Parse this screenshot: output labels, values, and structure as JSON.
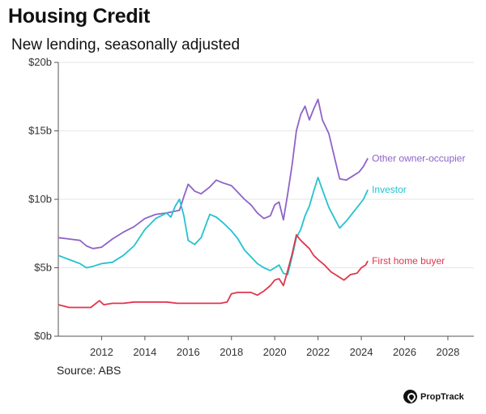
{
  "title": "Housing Credit",
  "subtitle": "New lending, seasonally adjusted",
  "source": "Source: ABS",
  "brand": {
    "name": "PropTrack",
    "icon": "proptrack-logo-icon"
  },
  "chart_data": {
    "type": "line",
    "title": "Housing Credit",
    "subtitle": "New lending, seasonally adjusted",
    "xlabel": "",
    "ylabel": "",
    "xlim": [
      2010,
      2029.2
    ],
    "ylim": [
      0,
      20
    ],
    "x_ticks": [
      2012,
      2014,
      2016,
      2018,
      2020,
      2022,
      2024,
      2026,
      2028
    ],
    "y_ticks": [
      {
        "value": 0,
        "label": "$0b"
      },
      {
        "value": 5,
        "label": "$5b"
      },
      {
        "value": 10,
        "label": "$10b"
      },
      {
        "value": 15,
        "label": "$15b"
      },
      {
        "value": 20,
        "label": "$20b"
      }
    ],
    "grid": "horizontal",
    "legend": "direct labels at line ends",
    "series": [
      {
        "name": "Other owner-occupier",
        "color": "#8e63c7",
        "x": [
          2010.0,
          2010.5,
          2011.0,
          2011.3,
          2011.6,
          2012.0,
          2012.5,
          2013.0,
          2013.5,
          2014.0,
          2014.5,
          2015.0,
          2015.3,
          2015.6,
          2015.8,
          2016.0,
          2016.3,
          2016.6,
          2017.0,
          2017.3,
          2017.6,
          2018.0,
          2018.3,
          2018.6,
          2018.9,
          2019.2,
          2019.5,
          2019.8,
          2020.0,
          2020.2,
          2020.4,
          2020.6,
          2020.8,
          2021.0,
          2021.2,
          2021.4,
          2021.6,
          2021.8,
          2022.0,
          2022.2,
          2022.5,
          2022.8,
          2023.0,
          2023.3,
          2023.6,
          2023.9,
          2024.1,
          2024.3
        ],
        "values": [
          7.2,
          7.1,
          7.0,
          6.6,
          6.4,
          6.5,
          7.1,
          7.6,
          8.0,
          8.6,
          8.9,
          9.0,
          9.1,
          9.2,
          10.2,
          11.1,
          10.6,
          10.4,
          10.9,
          11.4,
          11.2,
          11.0,
          10.5,
          10.0,
          9.6,
          9.0,
          8.6,
          8.8,
          9.6,
          9.8,
          8.5,
          10.4,
          12.5,
          15.0,
          16.2,
          16.8,
          15.8,
          16.6,
          17.3,
          15.8,
          14.8,
          12.8,
          11.5,
          11.4,
          11.7,
          12.0,
          12.4,
          13.0
        ]
      },
      {
        "name": "Investor",
        "color": "#26c2d0",
        "x": [
          2010.0,
          2010.5,
          2011.0,
          2011.3,
          2011.6,
          2012.0,
          2012.5,
          2013.0,
          2013.5,
          2014.0,
          2014.5,
          2015.0,
          2015.2,
          2015.4,
          2015.6,
          2015.8,
          2016.0,
          2016.3,
          2016.6,
          2017.0,
          2017.3,
          2017.6,
          2018.0,
          2018.3,
          2018.6,
          2018.9,
          2019.2,
          2019.5,
          2019.8,
          2020.0,
          2020.2,
          2020.4,
          2020.6,
          2020.8,
          2021.0,
          2021.2,
          2021.4,
          2021.6,
          2021.8,
          2022.0,
          2022.2,
          2022.5,
          2022.8,
          2023.0,
          2023.3,
          2023.6,
          2023.9,
          2024.1,
          2024.3
        ],
        "values": [
          5.9,
          5.6,
          5.3,
          5.0,
          5.1,
          5.3,
          5.4,
          5.9,
          6.6,
          7.8,
          8.6,
          9.0,
          8.7,
          9.5,
          10.0,
          8.8,
          7.0,
          6.7,
          7.2,
          8.9,
          8.7,
          8.3,
          7.7,
          7.1,
          6.3,
          5.8,
          5.3,
          5.0,
          4.8,
          5.0,
          5.2,
          4.6,
          4.5,
          5.8,
          7.2,
          7.8,
          8.8,
          9.5,
          10.6,
          11.6,
          10.7,
          9.4,
          8.5,
          7.9,
          8.4,
          9.0,
          9.6,
          10.0,
          10.7
        ]
      },
      {
        "name": "First home buyer",
        "color": "#e0364d",
        "x": [
          2010.0,
          2010.5,
          2011.0,
          2011.5,
          2011.9,
          2012.1,
          2012.5,
          2013.0,
          2013.5,
          2014.0,
          2014.5,
          2015.0,
          2015.5,
          2016.0,
          2016.5,
          2017.0,
          2017.5,
          2017.8,
          2018.0,
          2018.3,
          2018.6,
          2018.9,
          2019.2,
          2019.5,
          2019.8,
          2020.0,
          2020.2,
          2020.4,
          2020.6,
          2020.8,
          2021.0,
          2021.2,
          2021.4,
          2021.6,
          2021.8,
          2022.0,
          2022.3,
          2022.6,
          2022.9,
          2023.2,
          2023.5,
          2023.8,
          2024.0,
          2024.2,
          2024.3
        ],
        "values": [
          2.3,
          2.1,
          2.1,
          2.1,
          2.6,
          2.3,
          2.4,
          2.4,
          2.5,
          2.5,
          2.5,
          2.5,
          2.4,
          2.4,
          2.4,
          2.4,
          2.4,
          2.5,
          3.1,
          3.2,
          3.2,
          3.2,
          3.0,
          3.3,
          3.7,
          4.1,
          4.2,
          3.7,
          4.8,
          6.0,
          7.4,
          7.0,
          6.7,
          6.4,
          5.9,
          5.6,
          5.2,
          4.7,
          4.4,
          4.1,
          4.5,
          4.6,
          5.0,
          5.2,
          5.5
        ]
      }
    ]
  }
}
